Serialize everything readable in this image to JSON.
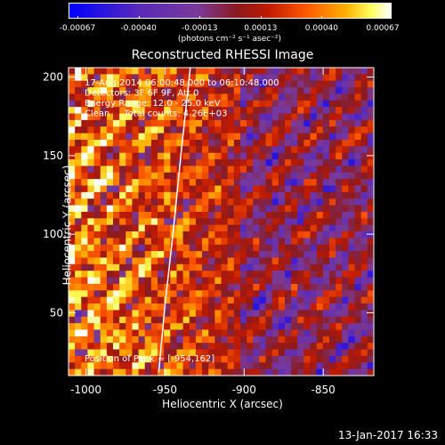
{
  "colorbar": {
    "ticks": [
      "-0.00067",
      "-0.00040",
      "-0.00013",
      "0.00013",
      "0.00040",
      "0.00067"
    ],
    "units": "(photons cm⁻² s⁻¹ asec⁻²)"
  },
  "chart_data": {
    "type": "heatmap",
    "title": "Reconstructed RHESSI Image",
    "xlabel": "Heliocentric X (arcsec)",
    "ylabel": "Heliocentric Y (arcsec)",
    "xlim": [
      -1011,
      -818
    ],
    "ylim": [
      10,
      206
    ],
    "x_ticks": [
      "-1000",
      "-950",
      "-900",
      "-850"
    ],
    "x_tick_values": [
      -1000,
      -950,
      -900,
      -850
    ],
    "y_ticks": [
      "50",
      "100",
      "150",
      "200"
    ],
    "y_tick_values": [
      50,
      100,
      150,
      200
    ],
    "value_range": [
      -0.00067,
      0.00067
    ],
    "colormap": [
      "#0000ff",
      "#5a2ab8",
      "#7a3a9a",
      "#8a1a20",
      "#c01a00",
      "#ff5a00",
      "#ffb000",
      "#ffff60",
      "#ffffff"
    ],
    "limb_curve": [
      [
        -954,
        12
      ],
      [
        -950,
        55
      ],
      [
        -945,
        100
      ],
      [
        -940,
        150
      ],
      [
        -934,
        206
      ]
    ],
    "peak_position": [
      -954,
      162
    ],
    "annotations": [
      "17-Aug-2014 06:00:48.000 to 06:10:48.000",
      "Detectors: 3F 6F 9F, Att 0",
      "Energy Range: 12.0 - 25.0 keV",
      "Clean     Total counts: 4.26E+03"
    ],
    "peak_label": "Position of Peak = [-954,162]"
  },
  "footer": "13-Jan-2017 16:33"
}
